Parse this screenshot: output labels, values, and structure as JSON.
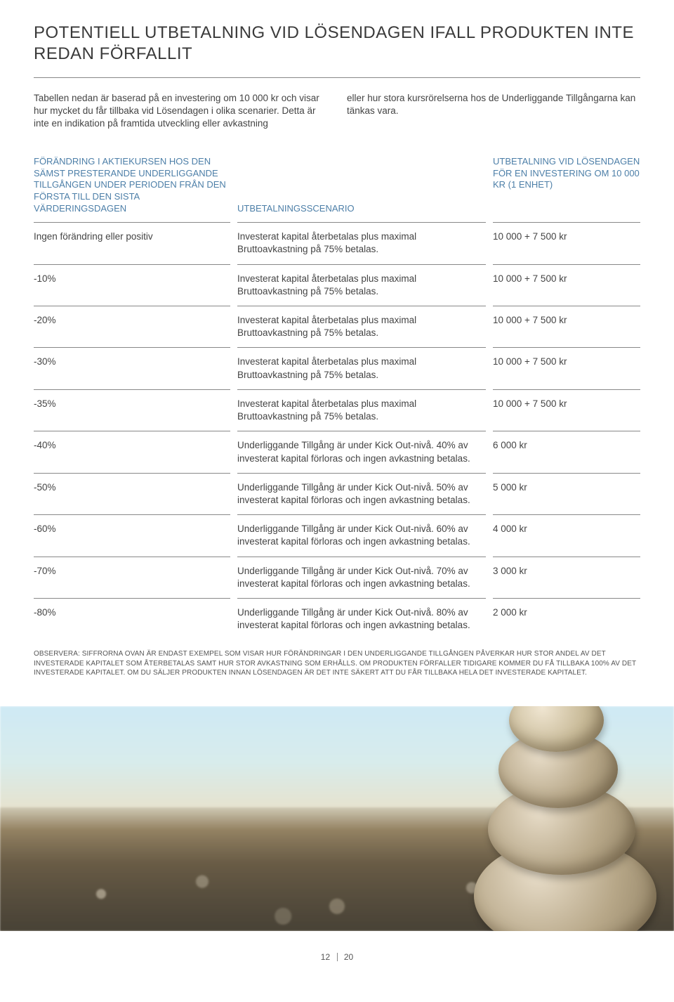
{
  "title": "POTENTIELL UTBETALNING VID LÖSENDAGEN IFALL PRODUKTEN INTE REDAN FÖRFALLIT",
  "intro": {
    "left": "Tabellen nedan är baserad på en investering om 10 000 kr och visar hur mycket du får tillbaka vid Lösendagen i olika scenarier. Detta är inte en indikation på framtida utveckling eller avkastning",
    "right": "eller hur stora kursrörelserna hos de Underliggande Tillgångarna kan tänkas vara."
  },
  "headers": {
    "a": "FÖRÄNDRING I AKTIEKURSEN HOS DEN SÄMST PRESTERANDE UNDERLIGGANDE TILLGÅNGEN UNDER PERIODEN FRÅN DEN FÖRSTA TILL DEN SISTA VÄRDERINGSDAGEN",
    "b": "UTBETALNINGSSCENARIO",
    "c": "UTBETALNING VID LÖSENDAGEN FÖR EN INVESTERING OM 10 000 KR (1 ENHET)"
  },
  "rows": [
    {
      "a": "Ingen förändring eller positiv",
      "b": "Investerat kapital återbetalas plus maximal Bruttoavkastning på 75% betalas.",
      "c": "10 000 + 7 500 kr"
    },
    {
      "a": "-10%",
      "b": "Investerat kapital återbetalas plus maximal Bruttoavkastning på 75% betalas.",
      "c": "10 000 + 7 500 kr"
    },
    {
      "a": "-20%",
      "b": "Investerat kapital återbetalas plus maximal Bruttoavkastning på 75% betalas.",
      "c": "10 000 + 7 500 kr"
    },
    {
      "a": "-30%",
      "b": "Investerat kapital återbetalas plus maximal Bruttoavkastning på 75% betalas.",
      "c": "10 000 + 7 500 kr"
    },
    {
      "a": "-35%",
      "b": "Investerat kapital återbetalas plus maximal Bruttoavkastning på 75% betalas.",
      "c": "10 000 + 7 500 kr"
    },
    {
      "a": "-40%",
      "b": "Underliggande Tillgång är under Kick Out-nivå. 40% av investerat kapital förloras och ingen avkastning betalas.",
      "c": "6 000 kr"
    },
    {
      "a": "-50%",
      "b": "Underliggande Tillgång är under Kick Out-nivå. 50% av investerat kapital förloras och ingen avkastning betalas.",
      "c": "5 000 kr"
    },
    {
      "a": "-60%",
      "b": "Underliggande Tillgång är under Kick Out-nivå. 60% av investerat kapital förloras och ingen avkastning betalas.",
      "c": "4 000 kr"
    },
    {
      "a": "-70%",
      "b": "Underliggande Tillgång är under Kick Out-nivå. 70% av investerat kapital förloras och ingen avkastning betalas.",
      "c": "3 000 kr"
    },
    {
      "a": "-80%",
      "b": "Underliggande Tillgång är under Kick Out-nivå. 80% av investerat kapital förloras och ingen avkastning betalas.",
      "c": "2 000 kr"
    }
  ],
  "note": "OBSERVERA: SIFFRORNA OVAN ÄR ENDAST EXEMPEL SOM VISAR HUR FÖRÄNDRINGAR I DEN UNDERLIGGANDE TILLGÅNGEN PÅVERKAR HUR STOR ANDEL AV DET INVESTERADE KAPITALET SOM ÅTERBETALAS SAMT HUR STOR AVKASTNING SOM ERHÅLLS. OM PRODUKTEN FÖRFALLER TIDIGARE KOMMER DU FÅ TILLBAKA 100% AV DET INVESTERADE KAPITALET. OM DU SÄLJER PRODUKTEN INNAN LÖSENDAGEN ÄR DET INTE SÄKERT ATT DU FÅR TILLBAKA HELA DET INVESTERADE KAPITALET.",
  "footer": {
    "page": "12",
    "total": "20"
  },
  "colors": {
    "heading_blue": "#4d7fa8",
    "text": "#3a3a3a",
    "rule": "#888888"
  }
}
